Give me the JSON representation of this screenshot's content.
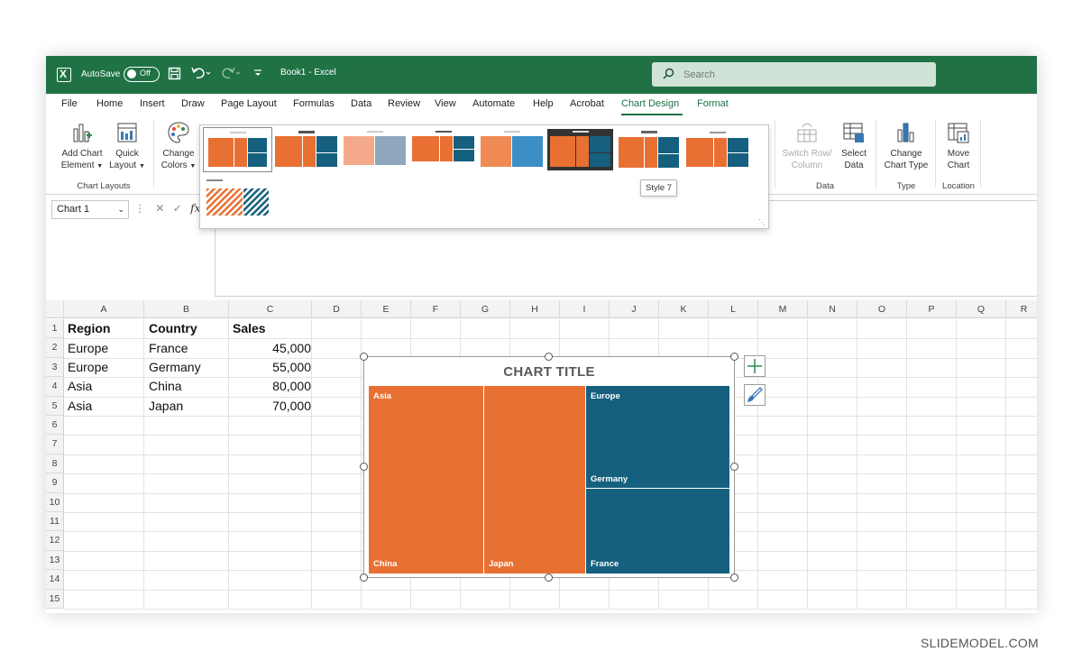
{
  "titlebar": {
    "autosave_label": "AutoSave",
    "autosave_state": "Off",
    "book_title": "Book1  -  Excel",
    "search_placeholder": "Search"
  },
  "tabs": [
    "File",
    "Home",
    "Insert",
    "Draw",
    "Page Layout",
    "Formulas",
    "Data",
    "Review",
    "View",
    "Automate",
    "Help",
    "Acrobat",
    "Chart Design",
    "Format"
  ],
  "active_tab": "Chart Design",
  "ribbon": {
    "add_chart_element": [
      "Add Chart",
      "Element"
    ],
    "quick_layout": [
      "Quick",
      "Layout"
    ],
    "change_colors": [
      "Change",
      "Colors"
    ],
    "chart_layouts_label": "Chart Layouts",
    "switch_row_column": [
      "Switch Row/",
      "Column"
    ],
    "select_data": [
      "Select",
      "Data"
    ],
    "data_label": "Data",
    "change_chart_type": [
      "Change",
      "Chart Type"
    ],
    "type_label": "Type",
    "move_chart": [
      "Move",
      "Chart"
    ],
    "location_label": "Location"
  },
  "gallery": {
    "selected_index": 0,
    "hovered_index": 6,
    "tooltip": "Style 7"
  },
  "formula_bar": {
    "name_box": "Chart 1",
    "fx": "fx"
  },
  "columns": [
    "A",
    "B",
    "C",
    "D",
    "E",
    "F",
    "G",
    "H",
    "I",
    "J",
    "K",
    "L",
    "M",
    "N",
    "O",
    "P",
    "Q",
    "R"
  ],
  "rows": [
    "1",
    "2",
    "3",
    "4",
    "5",
    "6",
    "7",
    "8",
    "9",
    "10",
    "11",
    "12",
    "13",
    "14",
    "15"
  ],
  "sheet": {
    "headers": [
      "Region",
      "Country",
      "Sales"
    ],
    "data": [
      [
        "Europe",
        "France",
        "45,000"
      ],
      [
        "Europe",
        "Germany",
        "55,000"
      ],
      [
        "Asia",
        "China",
        "80,000"
      ],
      [
        "Asia",
        "Japan",
        "70,000"
      ]
    ]
  },
  "chart_data": {
    "type": "treemap",
    "title": "CHART TITLE",
    "groups": [
      {
        "name": "Asia",
        "color": "#e87033",
        "children": [
          {
            "name": "China",
            "value": 80000
          },
          {
            "name": "Japan",
            "value": 70000
          }
        ]
      },
      {
        "name": "Europe",
        "color": "#16607f",
        "children": [
          {
            "name": "Germany",
            "value": 55000
          },
          {
            "name": "France",
            "value": 45000
          }
        ]
      }
    ]
  },
  "colors": {
    "excel_green": "#207245",
    "orange": "#e87033",
    "blue": "#16607f"
  },
  "watermark": "SLIDEMODEL.COM"
}
